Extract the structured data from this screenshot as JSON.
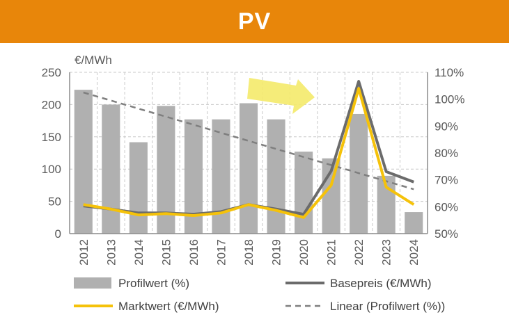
{
  "header": {
    "title": "PV"
  },
  "colors": {
    "header_bg": "#e8860a",
    "bar": "#b0b0b0",
    "basepreis": "#6b6b6b",
    "marktwert": "#f5c20a",
    "linear": "#7f7f7f",
    "arrow": "#f4ea6a"
  },
  "chart_data": {
    "type": "bar",
    "y_left_unit": "€/MWh",
    "categories": [
      "2012",
      "2013",
      "2014",
      "2015",
      "2016",
      "2017",
      "2018",
      "2019",
      "2020",
      "2021",
      "2022",
      "2023",
      "2024"
    ],
    "y_left_ticks": [
      "0",
      "50",
      "100",
      "150",
      "200",
      "250"
    ],
    "y_right_ticks": [
      "50%",
      "60%",
      "70%",
      "80%",
      "90%",
      "100%",
      "110%"
    ],
    "ylim_left": [
      0,
      250
    ],
    "ylim_right": [
      50,
      110
    ],
    "series": [
      {
        "name": "Profilwert (%)",
        "kind": "bar",
        "axis": "right",
        "values": [
          103.5,
          98,
          84,
          97.5,
          92.5,
          92.5,
          98.5,
          92.5,
          80.5,
          78,
          94.5,
          71.5,
          58
        ]
      },
      {
        "name": "Basepreis (€/MWh)",
        "kind": "line",
        "axis": "left",
        "values": [
          43,
          38,
          32,
          32,
          30,
          34,
          45,
          38,
          30,
          97,
          236,
          96,
          80
        ]
      },
      {
        "name": "Marktwert (€/MWh)",
        "kind": "line",
        "axis": "left",
        "values": [
          45,
          38,
          29,
          31,
          28,
          32,
          45,
          36,
          25,
          75,
          225,
          72,
          45
        ]
      },
      {
        "name": "Linear (Profilwert (%))",
        "kind": "trend",
        "axis": "right",
        "values": [
          102.5,
          99.5,
          96.5,
          93.5,
          90.5,
          87.5,
          84.5,
          81.5,
          78.5,
          75.5,
          72.5,
          69.5,
          66.5
        ]
      }
    ],
    "grid": true,
    "legend": "bottom"
  }
}
